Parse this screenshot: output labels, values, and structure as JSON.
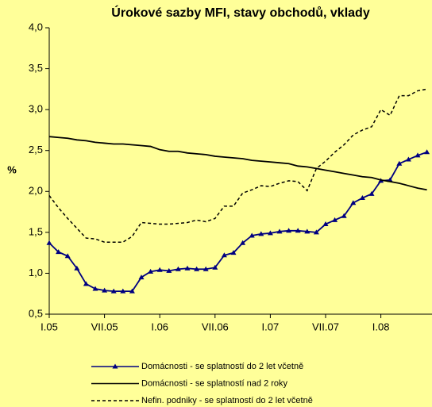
{
  "chart_data": {
    "type": "line",
    "title": "Úrokové sazby MFI, stavy obchodů, vklady",
    "y_label": "%",
    "categories": [
      "I.05",
      null,
      null,
      null,
      null,
      null,
      "VII.05",
      null,
      null,
      null,
      null,
      null,
      "I.06",
      null,
      null,
      null,
      null,
      null,
      "VII.06",
      null,
      null,
      null,
      null,
      null,
      "I.07",
      null,
      null,
      null,
      null,
      null,
      "VII.07",
      null,
      null,
      null,
      null,
      null,
      "I.08",
      null,
      null,
      null,
      null,
      null
    ],
    "ylim": [
      0.5,
      4.0
    ],
    "yticks": [
      {
        "value": 0.5,
        "label": "0,5"
      },
      {
        "value": 1.0,
        "label": "1,0"
      },
      {
        "value": 1.5,
        "label": "1,5"
      },
      {
        "value": 2.0,
        "label": "2,0"
      },
      {
        "value": 2.5,
        "label": "2,5"
      },
      {
        "value": 3.0,
        "label": "3,0"
      },
      {
        "value": 3.5,
        "label": "3,5"
      },
      {
        "value": 4.0,
        "label": "4,0"
      }
    ],
    "series": [
      {
        "name": "Domácnosti - se splatností do 2 let včetně",
        "color": "#000080",
        "style": "marker",
        "values": [
          1.37,
          1.26,
          1.21,
          1.06,
          0.87,
          0.81,
          0.79,
          0.78,
          0.78,
          0.78,
          0.95,
          1.02,
          1.04,
          1.03,
          1.05,
          1.06,
          1.05,
          1.05,
          1.07,
          1.22,
          1.25,
          1.37,
          1.46,
          1.48,
          1.49,
          1.51,
          1.52,
          1.52,
          1.51,
          1.5,
          1.6,
          1.65,
          1.7,
          1.86,
          1.92,
          1.97,
          2.13,
          2.14,
          2.34,
          2.39,
          2.44,
          2.48
        ]
      },
      {
        "name": "Domácnosti - se splatností nad 2 roky",
        "color": "#000000",
        "style": "solid",
        "values": [
          2.67,
          2.66,
          2.65,
          2.63,
          2.62,
          2.6,
          2.59,
          2.58,
          2.58,
          2.57,
          2.56,
          2.55,
          2.51,
          2.49,
          2.49,
          2.47,
          2.46,
          2.45,
          2.43,
          2.42,
          2.41,
          2.4,
          2.38,
          2.37,
          2.36,
          2.35,
          2.34,
          2.31,
          2.3,
          2.28,
          2.26,
          2.24,
          2.22,
          2.2,
          2.18,
          2.17,
          2.14,
          2.12,
          2.1,
          2.07,
          2.04,
          2.02
        ]
      },
      {
        "name": "Nefin. podniky - se splatností do 2 let včetně",
        "color": "#000000",
        "style": "dashed",
        "values": [
          1.95,
          1.8,
          1.67,
          1.55,
          1.43,
          1.42,
          1.38,
          1.38,
          1.38,
          1.45,
          1.62,
          1.61,
          1.6,
          1.6,
          1.61,
          1.62,
          1.65,
          1.63,
          1.67,
          1.82,
          1.82,
          1.98,
          2.02,
          2.07,
          2.06,
          2.1,
          2.13,
          2.12,
          2.01,
          2.28,
          2.37,
          2.48,
          2.57,
          2.69,
          2.75,
          2.79,
          3.0,
          2.93,
          3.17,
          3.17,
          3.23,
          3.25
        ]
      }
    ]
  }
}
